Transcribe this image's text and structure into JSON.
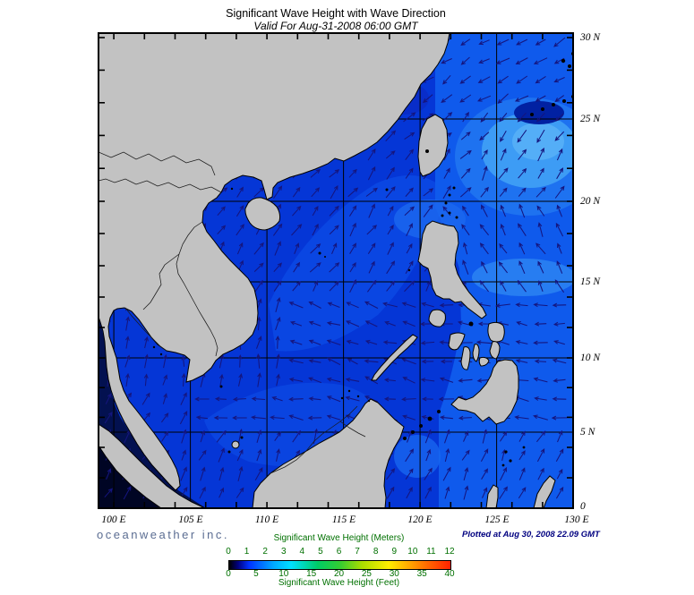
{
  "title": "Significant Wave Height with Wave Direction",
  "subtitle": "Valid For Aug-31-2008 06:00 GMT",
  "axes": {
    "lon_labels": [
      "100 E",
      "105 E",
      "110 E",
      "115 E",
      "120 E",
      "125 E",
      "130 E"
    ],
    "lat_labels": [
      "30 N",
      "25 N",
      "20 N",
      "15 N",
      "10 N",
      "5 N",
      "0"
    ]
  },
  "branding": {
    "logo": "oceanweather inc.",
    "plotted": "Plotted at Aug 30, 2008 22.09 GMT"
  },
  "legend": {
    "meters_title": "Significant Wave Height (Meters)",
    "feet_title": "Significant Wave Height (Feet)",
    "meters_ticks": [
      "0",
      "1",
      "2",
      "3",
      "4",
      "5",
      "6",
      "7",
      "8",
      "9",
      "10",
      "11",
      "12"
    ],
    "feet_ticks": [
      "0",
      "5",
      "10",
      "15",
      "20",
      "25",
      "30",
      "35",
      "40"
    ]
  },
  "colors": {
    "land": "#c2c2c2",
    "coast": "#000000",
    "ocean_base": "#0536d6",
    "arrow": "#15157e",
    "legend_text": "#007000",
    "logo_text": "#5b6d92",
    "plotted_text": "#000080"
  },
  "chart_data": {
    "type": "heatmap",
    "title": "Significant Wave Height with Wave Direction",
    "valid_time": "Aug-31-2008 06:00 GMT",
    "region": {
      "lon_range_deg_east": [
        99,
        130
      ],
      "lat_range_deg_north": [
        0,
        30.5
      ],
      "grid_interval_deg": 5
    },
    "colorbar": {
      "meters_range": [
        0,
        12
      ],
      "feet_range": [
        0,
        40
      ],
      "stops": [
        "#000000",
        "#000080",
        "#0033ff",
        "#00aaff",
        "#00e0ff",
        "#00cc66",
        "#33cc33",
        "#aadd00",
        "#ffee00",
        "#ffaa00",
        "#ff6600",
        "#ff2200"
      ]
    },
    "depicted_field": {
      "typical_open_sea_height_m": "1-2.5",
      "highest_area": "storm patch east of Taiwan / Ryukyus, ~3-5 m (lighter cyan-blue)",
      "lowest_area": "Malacca Strait and west of Sumatra, <0.5 m (near-black navy)",
      "wave_direction_summary": "NE-ward in northern South China Sea and near Taiwan; N-ward along Vietnam coast and Gulf of Thailand; W-ward swell in Philippine, Sulu and central seas; SW-ward in far northeast corner"
    }
  }
}
